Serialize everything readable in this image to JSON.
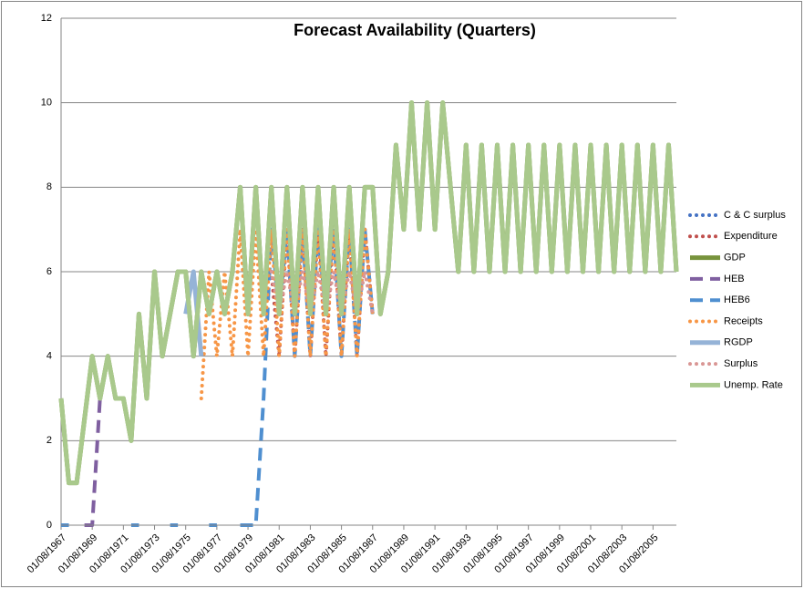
{
  "chart_data": {
    "type": "line",
    "title": "Forecast Availability (Quarters)",
    "categories": [
      "01/08/1967",
      null,
      null,
      null,
      "01/08/1969",
      null,
      null,
      null,
      "01/08/1971",
      null,
      null,
      null,
      "01/08/1973",
      null,
      null,
      null,
      "01/08/1975",
      null,
      null,
      null,
      "01/08/1977",
      null,
      null,
      null,
      "01/08/1979",
      null,
      null,
      null,
      "01/08/1981",
      null,
      null,
      null,
      "01/08/1983",
      null,
      null,
      null,
      "01/08/1985",
      null,
      null,
      null,
      "01/08/1987",
      null,
      null,
      null,
      "01/08/1989",
      null,
      null,
      null,
      "01/08/1991",
      null,
      null,
      null,
      "01/08/1993",
      null,
      null,
      null,
      "01/08/1995",
      null,
      null,
      null,
      "01/08/1997",
      null,
      null,
      null,
      "01/08/1999",
      null,
      null,
      null,
      "01/08/2001",
      null,
      null,
      null,
      "01/08/2003",
      null,
      null,
      null,
      "01/08/2005",
      null,
      null,
      null
    ],
    "ylim": [
      0,
      12
    ],
    "yticks": [
      0,
      2,
      4,
      6,
      8,
      10,
      12
    ],
    "grid": true,
    "series": [
      {
        "name": "C & C surplus",
        "color": "#4472c4",
        "dash": "dot",
        "values": [
          null,
          null,
          null,
          null,
          null,
          null,
          null,
          null,
          null,
          null,
          null,
          null,
          null,
          null,
          null,
          null,
          null,
          null,
          null,
          null,
          null,
          null,
          null,
          null,
          null,
          null,
          null,
          6,
          5,
          7,
          5,
          7,
          5,
          7,
          5,
          7,
          5,
          7,
          5,
          7,
          5,
          null,
          null,
          null,
          null,
          null,
          null,
          null,
          null,
          null,
          null,
          null,
          null,
          null,
          null,
          null,
          null,
          null,
          null,
          null,
          null,
          null,
          null,
          null,
          null,
          null,
          null,
          null,
          null,
          null,
          null,
          null,
          null,
          null,
          null,
          null,
          null,
          null,
          null,
          null
        ]
      },
      {
        "name": "Expenditure",
        "color": "#c0504d",
        "dash": "dot",
        "values": [
          null,
          null,
          null,
          null,
          null,
          null,
          null,
          null,
          null,
          null,
          null,
          null,
          null,
          null,
          null,
          null,
          null,
          null,
          null,
          null,
          null,
          null,
          null,
          null,
          null,
          null,
          null,
          6,
          4,
          7,
          4,
          7,
          4,
          7,
          4,
          7,
          4,
          7,
          4,
          7,
          5,
          null,
          null,
          null,
          null,
          null,
          null,
          null,
          null,
          null,
          null,
          null,
          null,
          null,
          null,
          null,
          null,
          null,
          null,
          null,
          null,
          null,
          null,
          null,
          null,
          null,
          null,
          null,
          null,
          null,
          null,
          null,
          null,
          null,
          null,
          null,
          null,
          null,
          null,
          null
        ]
      },
      {
        "name": "GDP",
        "color": "#77933c",
        "dash": "solid",
        "values": [
          3,
          1,
          1,
          2.5,
          4,
          3,
          4,
          3,
          3,
          2,
          5,
          3,
          6,
          4,
          5,
          6,
          6,
          4,
          6,
          5,
          6,
          5,
          6,
          8,
          5,
          8,
          5,
          8,
          5,
          8,
          5,
          8,
          5,
          8,
          5,
          8,
          5,
          8,
          5,
          8,
          8,
          5,
          6,
          9,
          7,
          10,
          7,
          10,
          7,
          10,
          8,
          6,
          9,
          6,
          9,
          6,
          9,
          6,
          9,
          6,
          9,
          6,
          9,
          6,
          9,
          6,
          9,
          6,
          9,
          6,
          9,
          6,
          9,
          6,
          9,
          6,
          9,
          6,
          9,
          6
        ]
      },
      {
        "name": "HEB",
        "color": "#7f5fa0",
        "dash": "dash",
        "values": [
          null,
          null,
          null,
          0,
          0,
          3,
          4,
          null,
          null,
          null,
          null,
          null,
          null,
          null,
          null,
          null,
          null,
          null,
          null,
          null,
          null,
          null,
          null,
          null,
          null,
          null,
          null,
          null,
          null,
          null,
          null,
          null,
          null,
          null,
          null,
          null,
          null,
          null,
          null,
          null,
          null,
          null,
          null,
          null,
          null,
          null,
          null,
          null,
          null,
          null,
          null,
          null,
          null,
          null,
          null,
          null,
          null,
          null,
          null,
          null,
          null,
          null,
          null,
          null,
          null,
          null,
          null,
          null,
          null,
          null,
          null,
          null,
          null,
          null,
          null,
          null,
          null,
          null,
          null,
          null
        ]
      },
      {
        "name": "HEB6",
        "color": "#4f8fd0",
        "dash": "dash",
        "values": [
          0,
          0,
          null,
          null,
          null,
          null,
          null,
          null,
          null,
          0,
          0,
          null,
          null,
          null,
          0,
          0,
          null,
          null,
          null,
          0,
          0,
          null,
          null,
          0,
          0,
          0,
          3,
          7,
          5,
          7,
          4,
          7,
          4,
          7,
          5,
          7,
          4,
          7,
          4,
          7,
          5,
          null,
          null,
          null,
          null,
          null,
          null,
          null,
          null,
          null,
          null,
          null,
          null,
          null,
          null,
          null,
          null,
          null,
          null,
          null,
          null,
          null,
          null,
          null,
          null,
          null,
          null,
          null,
          null,
          null,
          null,
          null,
          null,
          null,
          null,
          null,
          null,
          null,
          null,
          null
        ]
      },
      {
        "name": "Receipts",
        "color": "#f79646",
        "dash": "dot",
        "values": [
          null,
          null,
          null,
          null,
          null,
          null,
          null,
          null,
          null,
          null,
          null,
          null,
          null,
          null,
          null,
          null,
          null,
          null,
          3,
          6,
          4,
          6,
          4,
          7,
          4,
          7,
          4,
          7,
          4,
          7,
          4,
          7,
          4,
          7,
          4,
          7,
          4,
          7,
          4,
          7,
          5,
          null,
          null,
          null,
          null,
          null,
          null,
          null,
          null,
          null,
          null,
          null,
          null,
          null,
          null,
          null,
          null,
          null,
          null,
          null,
          null,
          null,
          null,
          null,
          null,
          null,
          null,
          null,
          null,
          null,
          null,
          null,
          null,
          null,
          null,
          null,
          null,
          null,
          null,
          null
        ]
      },
      {
        "name": "RGDP",
        "color": "#95b3d7",
        "dash": "solid",
        "values": [
          null,
          null,
          null,
          null,
          null,
          null,
          null,
          null,
          null,
          null,
          null,
          null,
          null,
          null,
          null,
          null,
          5,
          6,
          4,
          null,
          null,
          null,
          null,
          null,
          null,
          null,
          null,
          null,
          null,
          null,
          null,
          null,
          null,
          null,
          null,
          null,
          null,
          null,
          null,
          null,
          null,
          null,
          null,
          null,
          null,
          null,
          null,
          null,
          null,
          null,
          null,
          null,
          null,
          null,
          null,
          null,
          null,
          null,
          null,
          null,
          null,
          null,
          null,
          null,
          null,
          null,
          null,
          null,
          null,
          null,
          null,
          null,
          null,
          null,
          null,
          null,
          null,
          null,
          null,
          null
        ]
      },
      {
        "name": "Surplus",
        "color": "#d99694",
        "dash": "dot",
        "values": [
          null,
          null,
          null,
          null,
          null,
          null,
          null,
          null,
          null,
          null,
          null,
          null,
          null,
          null,
          null,
          null,
          null,
          null,
          null,
          null,
          null,
          null,
          null,
          null,
          null,
          null,
          null,
          6,
          5,
          6,
          5,
          6,
          5,
          6,
          5,
          6,
          5,
          6,
          5,
          6,
          5,
          null,
          null,
          null,
          null,
          null,
          null,
          null,
          null,
          null,
          null,
          null,
          null,
          null,
          null,
          null,
          null,
          null,
          null,
          null,
          null,
          null,
          null,
          null,
          null,
          null,
          null,
          null,
          null,
          null,
          null,
          null,
          null,
          null,
          null,
          null,
          null,
          null,
          null,
          null
        ]
      },
      {
        "name": "Unemp. Rate",
        "color": "#a9c98c",
        "dash": "solid",
        "values": [
          3,
          1,
          1,
          2.5,
          4,
          3,
          4,
          3,
          3,
          2,
          5,
          3,
          6,
          4,
          5,
          6,
          6,
          4,
          6,
          5,
          6,
          5,
          6,
          8,
          5,
          8,
          5,
          8,
          5,
          8,
          5,
          8,
          5,
          8,
          5,
          8,
          5,
          8,
          5,
          8,
          8,
          5,
          6,
          9,
          7,
          10,
          7,
          10,
          7,
          10,
          8,
          6,
          9,
          6,
          9,
          6,
          9,
          6,
          9,
          6,
          9,
          6,
          9,
          6,
          9,
          6,
          9,
          6,
          9,
          6,
          9,
          6,
          9,
          6,
          9,
          6,
          9,
          6,
          9,
          6
        ]
      }
    ]
  }
}
